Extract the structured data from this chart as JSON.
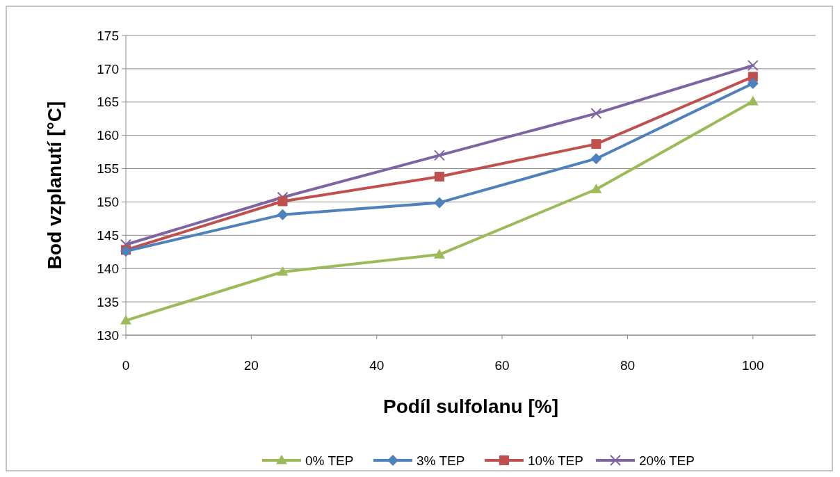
{
  "chart_data": {
    "type": "line",
    "xlabel": "Podíl sulfolanu [%]",
    "ylabel": "Bod vzplanutí [°C]",
    "x": [
      0,
      25,
      50,
      75,
      100
    ],
    "xlim": [
      0,
      110
    ],
    "xticks": [
      0,
      20,
      40,
      60,
      80,
      100
    ],
    "ylim": [
      130,
      175
    ],
    "yticks": [
      130,
      135,
      140,
      145,
      150,
      155,
      160,
      165,
      170,
      175
    ],
    "grid": "y",
    "legend": "bottom",
    "series": [
      {
        "name": "0% TEP",
        "color": "#9bbb59",
        "marker": "triangle",
        "values": [
          132.2,
          139.5,
          142.1,
          151.9,
          165.1
        ]
      },
      {
        "name": "3% TEP",
        "color": "#4f81bd",
        "marker": "diamond",
        "values": [
          142.6,
          148.1,
          149.9,
          156.5,
          167.8
        ]
      },
      {
        "name": "10% TEP",
        "color": "#c0504d",
        "marker": "square",
        "values": [
          142.8,
          150.1,
          153.8,
          158.7,
          168.8
        ]
      },
      {
        "name": "20% TEP",
        "color": "#8064a2",
        "marker": "cross",
        "values": [
          143.6,
          150.7,
          157.0,
          163.3,
          170.5
        ]
      }
    ]
  }
}
